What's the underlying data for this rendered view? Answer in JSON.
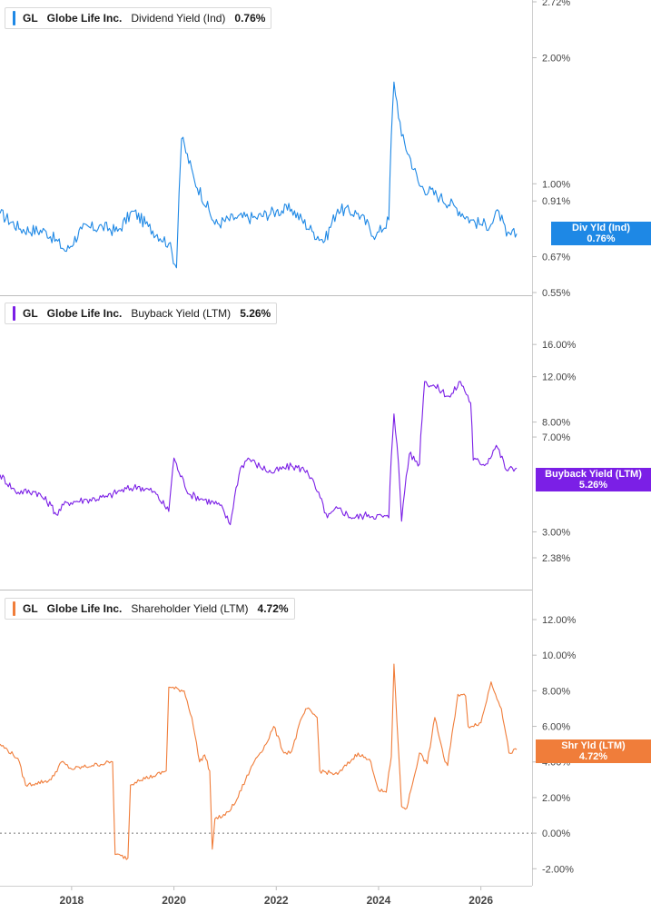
{
  "chart_data": [
    {
      "type": "line",
      "ticker": "GL",
      "company": "Globe Life Inc.",
      "metric": "Dividend Yield (Ind)",
      "current_value": "0.76%",
      "tag_label": "Div Yld (Ind)",
      "color": "#1e88e5",
      "scale": "log",
      "ylim": [
        0.55,
        2.72
      ],
      "yticks": [
        "2.72%",
        "2.00%",
        "1.00%",
        "0.91%",
        "0.67%",
        "0.55%"
      ],
      "ytick_values": [
        2.72,
        2.0,
        1.0,
        0.91,
        0.67,
        0.55
      ],
      "x": [
        2016.6,
        2017.0,
        2017.5,
        2017.9,
        2018.2,
        2018.6,
        2018.9,
        2019.2,
        2019.5,
        2019.9,
        2020.05,
        2020.15,
        2020.4,
        2020.8,
        2021.2,
        2021.6,
        2022.0,
        2022.3,
        2022.7,
        2022.95,
        2023.2,
        2023.6,
        2023.95,
        2024.2,
        2024.3,
        2024.45,
        2024.8,
        2025.2,
        2025.5,
        2025.8,
        2026.0,
        2026.2,
        2026.35,
        2026.5,
        2026.7
      ],
      "y": [
        0.85,
        0.78,
        0.77,
        0.69,
        0.78,
        0.79,
        0.77,
        0.86,
        0.79,
        0.72,
        0.63,
        1.28,
        1.02,
        0.8,
        0.83,
        0.83,
        0.86,
        0.87,
        0.77,
        0.73,
        0.87,
        0.85,
        0.75,
        0.82,
        1.75,
        1.3,
        0.99,
        0.93,
        0.88,
        0.82,
        0.8,
        0.8,
        0.86,
        0.75,
        0.76
      ]
    },
    {
      "type": "line",
      "ticker": "GL",
      "company": "Globe Life Inc.",
      "metric": "Buyback Yield (LTM)",
      "current_value": "5.26%",
      "tag_label": "Buyback Yield (LTM)",
      "color": "#7b1fe6",
      "scale": "log",
      "ylim": [
        2.38,
        19.0
      ],
      "yticks": [
        "16.00%",
        "12.00%",
        "8.00%",
        "7.00%",
        "3.00%",
        "2.38%"
      ],
      "ytick_values": [
        16.0,
        12.0,
        8.0,
        7.0,
        3.0,
        2.38
      ],
      "x": [
        2016.6,
        2016.9,
        2017.3,
        2017.6,
        2017.7,
        2017.9,
        2018.3,
        2018.7,
        2018.9,
        2019.3,
        2019.6,
        2019.9,
        2020.0,
        2020.1,
        2020.3,
        2020.6,
        2020.9,
        2021.1,
        2021.3,
        2021.45,
        2021.6,
        2021.9,
        2022.3,
        2022.6,
        2022.8,
        2023.0,
        2023.2,
        2023.5,
        2023.8,
        2024.2,
        2024.3,
        2024.45,
        2024.6,
        2024.8,
        2024.9,
        2025.1,
        2025.4,
        2025.6,
        2025.8,
        2025.85,
        2026.1,
        2026.3,
        2026.5,
        2026.7
      ],
      "y": [
        5.0,
        4.3,
        4.3,
        3.8,
        3.5,
        3.9,
        4.0,
        4.1,
        4.3,
        4.5,
        4.3,
        3.6,
        5.8,
        5.1,
        4.2,
        4.0,
        3.8,
        3.2,
        5.3,
        5.8,
        5.5,
        5.1,
        5.4,
        5.2,
        4.3,
        3.4,
        3.7,
        3.4,
        3.5,
        3.4,
        8.6,
        3.3,
        6.0,
        5.5,
        11.5,
        11.0,
        10.0,
        11.5,
        9.5,
        5.7,
        5.5,
        6.5,
        5.2,
        5.3
      ]
    },
    {
      "type": "line",
      "ticker": "GL",
      "company": "Globe Life Inc.",
      "metric": "Shareholder Yield (LTM)",
      "current_value": "4.72%",
      "tag_label": "Shr Yld (LTM)",
      "color": "#f07d3a",
      "scale": "linear",
      "ylim": [
        -2.7,
        12.0
      ],
      "yticks": [
        "12.00%",
        "10.00%",
        "8.00%",
        "6.00%",
        "4.00%",
        "2.00%",
        "0.00%",
        "-2.00%"
      ],
      "ytick_values": [
        12.0,
        10.0,
        8.0,
        6.0,
        4.0,
        2.0,
        0.0,
        -2.0
      ],
      "x": [
        2016.6,
        2016.95,
        2017.1,
        2017.3,
        2017.6,
        2017.8,
        2018.0,
        2018.4,
        2018.8,
        2018.85,
        2019.1,
        2019.15,
        2019.3,
        2019.6,
        2019.85,
        2019.9,
        2020.2,
        2020.35,
        2020.5,
        2020.6,
        2020.7,
        2020.75,
        2020.8,
        2021.0,
        2021.2,
        2021.4,
        2021.6,
        2021.8,
        2021.95,
        2022.15,
        2022.3,
        2022.5,
        2022.6,
        2022.8,
        2022.85,
        2023.2,
        2023.6,
        2023.85,
        2024.0,
        2024.15,
        2024.25,
        2024.3,
        2024.45,
        2024.55,
        2024.8,
        2024.95,
        2025.1,
        2025.3,
        2025.35,
        2025.55,
        2025.7,
        2025.75,
        2026.0,
        2026.2,
        2026.4,
        2026.55,
        2026.7
      ],
      "y": [
        5.0,
        4.2,
        2.7,
        2.8,
        3.0,
        4.0,
        3.6,
        3.8,
        4.0,
        -1.2,
        -1.4,
        2.7,
        3.0,
        3.2,
        3.5,
        8.2,
        8.0,
        6.5,
        4.0,
        4.4,
        3.5,
        -0.9,
        0.8,
        1.0,
        1.7,
        3.0,
        4.2,
        5.0,
        6.0,
        4.5,
        4.6,
        6.5,
        7.0,
        6.5,
        3.5,
        3.3,
        4.5,
        4.0,
        2.4,
        2.3,
        4.3,
        9.5,
        1.5,
        1.4,
        4.5,
        3.9,
        6.5,
        4.0,
        3.8,
        7.8,
        7.7,
        6.0,
        6.2,
        8.5,
        7.0,
        4.5,
        4.7
      ]
    }
  ],
  "x_axis": {
    "ticks": [
      "2018",
      "2020",
      "2022",
      "2024",
      "2026"
    ],
    "tick_values": [
      2018,
      2020,
      2022,
      2024,
      2026
    ],
    "xlim": [
      2016.6,
      2027.0
    ]
  }
}
